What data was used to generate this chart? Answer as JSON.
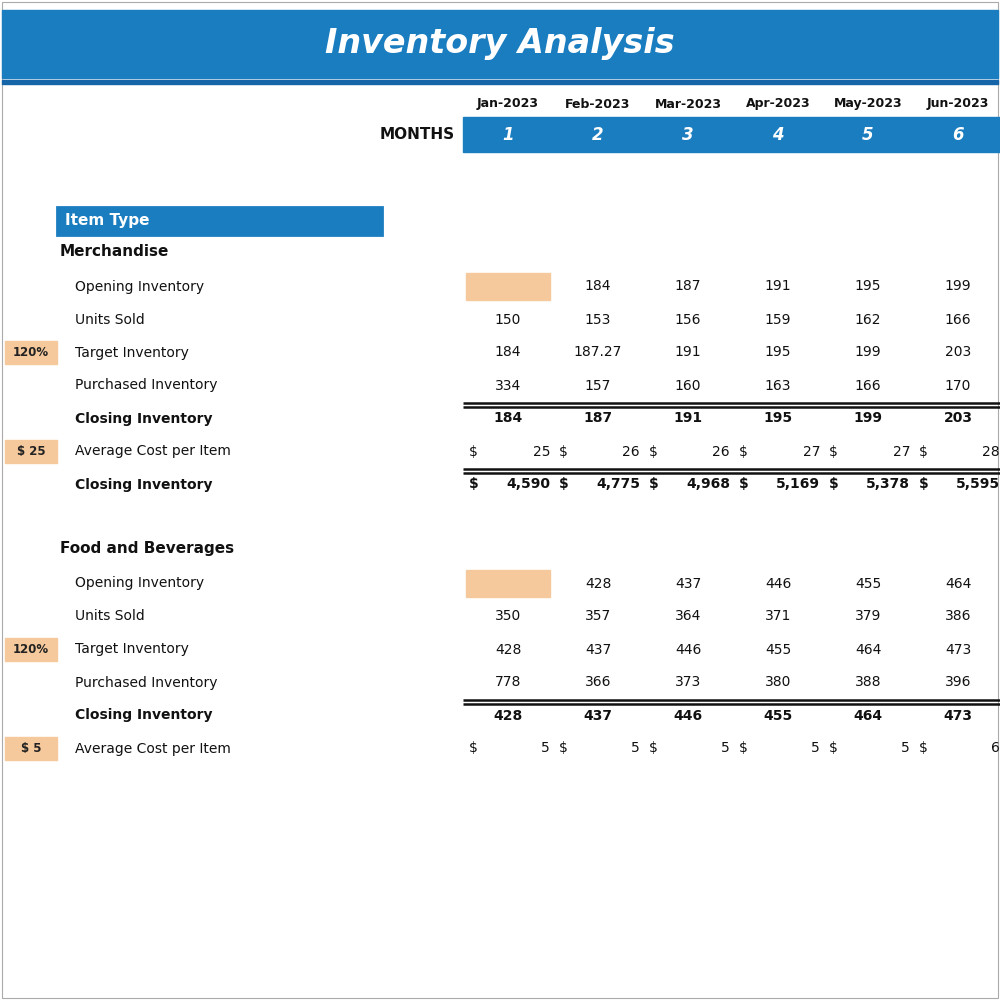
{
  "title": "Inventory Analysis",
  "title_bg": "#1a7dc0",
  "title_color": "#ffffff",
  "header_bg": "#1a7dc0",
  "header_color": "#ffffff",
  "months_label": "MONTHS",
  "month_names": [
    "Jan-2023",
    "Feb-2023",
    "Mar-2023",
    "Apr-2023",
    "May-2023",
    "Jun-2023"
  ],
  "month_nums": [
    "1",
    "2",
    "3",
    "4",
    "5",
    "6"
  ],
  "item_type_label": "Item Type",
  "item_type_bg": "#1a7dc0",
  "item_type_color": "#ffffff",
  "sections": [
    {
      "section_title": "Merchandise",
      "rows": [
        {
          "label": "Opening Inventory",
          "left_annotation": "",
          "values": [
            "",
            "184",
            "187",
            "191",
            "195",
            "199"
          ],
          "bold": false,
          "first_cell_shaded": true,
          "top_border": false
        },
        {
          "label": "Units Sold",
          "left_annotation": "",
          "values": [
            "150",
            "153",
            "156",
            "159",
            "162",
            "166"
          ],
          "bold": false,
          "first_cell_shaded": false,
          "top_border": false
        },
        {
          "label": "Target Inventory",
          "left_annotation": "120%",
          "values": [
            "184",
            "187.27",
            "191",
            "195",
            "199",
            "203"
          ],
          "bold": false,
          "first_cell_shaded": false,
          "top_border": false
        },
        {
          "label": "Purchased Inventory",
          "left_annotation": "",
          "values": [
            "334",
            "157",
            "160",
            "163",
            "166",
            "170"
          ],
          "bold": false,
          "first_cell_shaded": false,
          "top_border": false
        },
        {
          "label": "Closing Inventory",
          "left_annotation": "",
          "values": [
            "184",
            "187",
            "191",
            "195",
            "199",
            "203"
          ],
          "bold": true,
          "first_cell_shaded": false,
          "top_border": true
        },
        {
          "label": "Average Cost per Item",
          "left_annotation": "$ 25",
          "values": [
            "25",
            "26",
            "26",
            "27",
            "27",
            "28"
          ],
          "bold": false,
          "first_cell_shaded": false,
          "top_border": false,
          "dollar_format": true
        },
        {
          "label": "Closing Inventory",
          "left_annotation": "",
          "values": [
            "4,590",
            "4,775",
            "4,968",
            "5,169",
            "5,378",
            "5,595"
          ],
          "bold": true,
          "first_cell_shaded": false,
          "top_border": true,
          "dollar_format": true
        }
      ]
    },
    {
      "section_title": "Food and Beverages",
      "rows": [
        {
          "label": "Opening Inventory",
          "left_annotation": "",
          "values": [
            "",
            "428",
            "437",
            "446",
            "455",
            "464"
          ],
          "bold": false,
          "first_cell_shaded": true,
          "top_border": false
        },
        {
          "label": "Units Sold",
          "left_annotation": "",
          "values": [
            "350",
            "357",
            "364",
            "371",
            "379",
            "386"
          ],
          "bold": false,
          "first_cell_shaded": false,
          "top_border": false
        },
        {
          "label": "Target Inventory",
          "left_annotation": "120%",
          "values": [
            "428",
            "437",
            "446",
            "455",
            "464",
            "473"
          ],
          "bold": false,
          "first_cell_shaded": false,
          "top_border": false
        },
        {
          "label": "Purchased Inventory",
          "left_annotation": "",
          "values": [
            "778",
            "366",
            "373",
            "380",
            "388",
            "396"
          ],
          "bold": false,
          "first_cell_shaded": false,
          "top_border": false
        },
        {
          "label": "Closing Inventory",
          "left_annotation": "",
          "values": [
            "428",
            "437",
            "446",
            "455",
            "464",
            "473"
          ],
          "bold": true,
          "first_cell_shaded": false,
          "top_border": true
        },
        {
          "label": "Average Cost per Item",
          "left_annotation": "$ 5",
          "values": [
            "5",
            "5",
            "5",
            "5",
            "5",
            "6"
          ],
          "bold": false,
          "first_cell_shaded": false,
          "top_border": false,
          "dollar_format": true
        }
      ]
    }
  ],
  "shaded_cell_color": "#f5c99b",
  "annotation_bg": "#f5c99b",
  "bg_color": "#ffffff",
  "outer_border_color": "#aaaaaa",
  "text_color": "#111111",
  "font_family": "DejaVu Sans"
}
